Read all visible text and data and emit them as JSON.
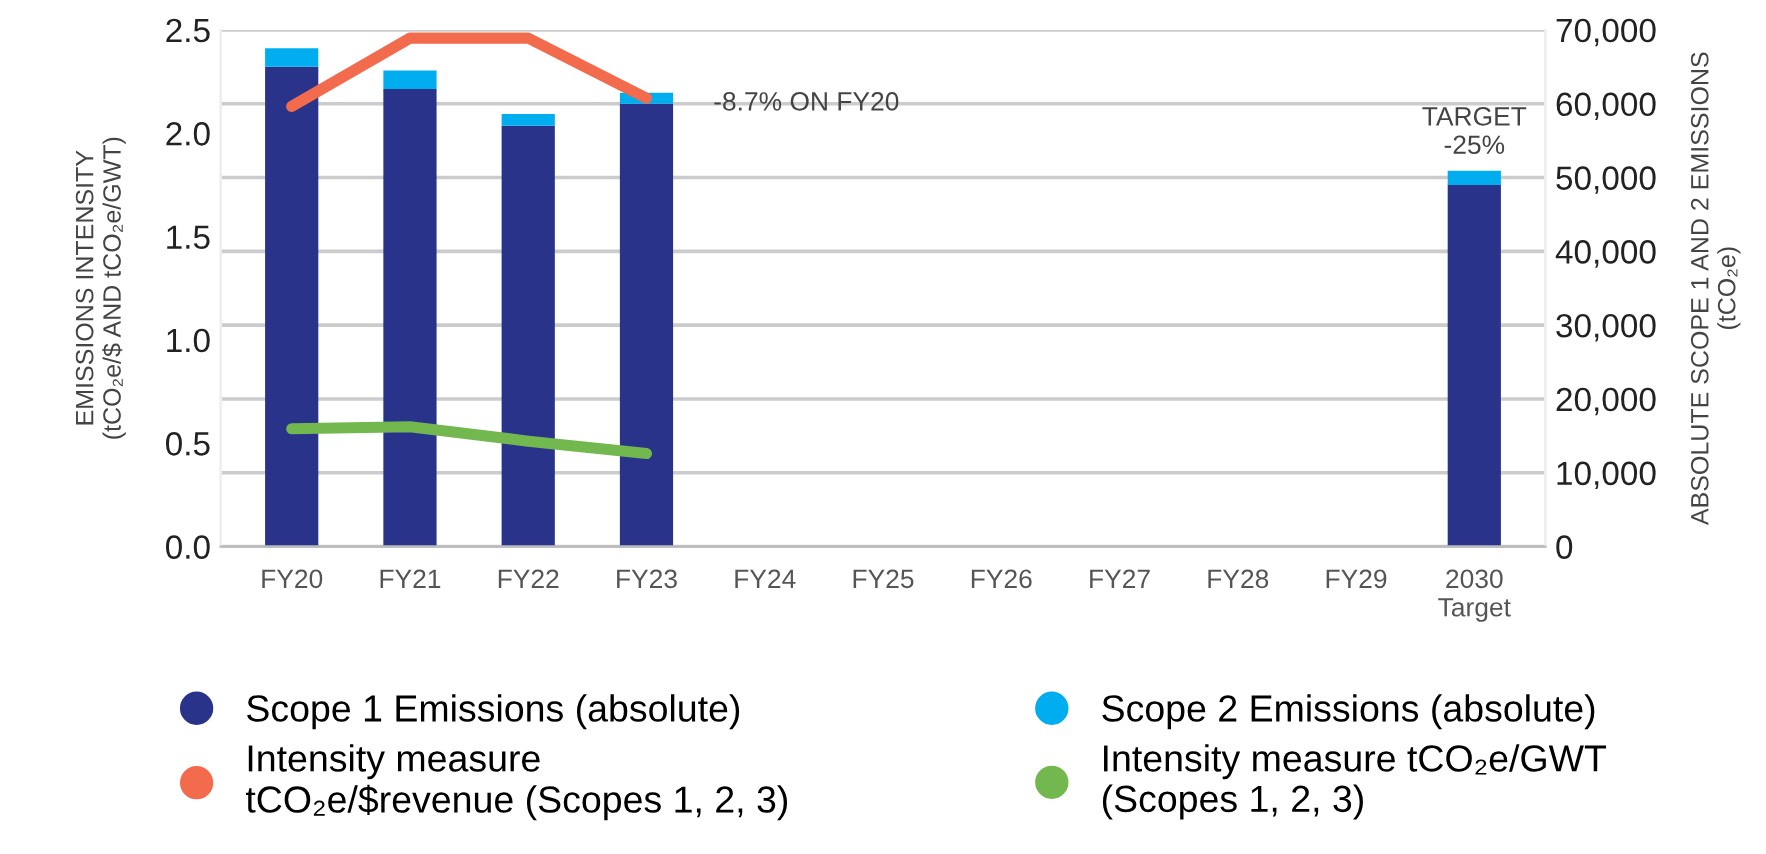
{
  "chart_data": {
    "type": "bar",
    "stacked": true,
    "categories": [
      "FY20",
      "FY21",
      "FY22",
      "FY23",
      "FY24",
      "FY25",
      "FY26",
      "FY27",
      "FY28",
      "FY29",
      "2030\nTarget"
    ],
    "ylabel": "EMISSIONS INTENSITY\n(tCO₂e/$ AND tCO₂e/GWT)",
    "y2label": "ABSOLUTE SCOPE 1 AND 2 EMISSIONS\n(tCO₂e)",
    "ylim": [
      0,
      2.5
    ],
    "yticks": [
      {
        "value": 0,
        "label": "0.0"
      },
      0.5,
      {
        "value": 1,
        "label": "1.0"
      },
      1.5,
      {
        "value": 2,
        "label": "2.0"
      },
      2.5
    ],
    "y2lim": [
      0,
      70000
    ],
    "y2ticks": [
      {
        "value": 0,
        "label": "0"
      },
      {
        "value": 10000,
        "label": "10,000"
      },
      {
        "value": 20000,
        "label": "20,000"
      },
      {
        "value": 30000,
        "label": "30,000"
      },
      {
        "value": 40000,
        "label": "40,000"
      },
      {
        "value": 50000,
        "label": "50,000"
      },
      {
        "value": 60000,
        "label": "60,000"
      },
      {
        "value": 70000,
        "label": "70,000"
      }
    ],
    "grid": "y",
    "legend": "bottom",
    "marker": "none",
    "line_style": "solid",
    "series": [
      {
        "name": "Scope 1 Emissions (absolute)",
        "axis": "y2",
        "color": "#283389",
        "values": [
          65000,
          62000,
          57000,
          60000,
          null,
          null,
          null,
          null,
          null,
          null,
          49000
        ]
      },
      {
        "name": "Scope 2 Emissions (absolute)",
        "axis": "y2",
        "color": "#00aeef",
        "values": [
          2500,
          2500,
          1600,
          1500,
          null,
          null,
          null,
          null,
          null,
          null,
          1900
        ]
      },
      {
        "name": "Intensity measure\ntCO₂e/$revenue (Scopes 1, 2, 3)",
        "type": "line",
        "color": "#f26b4c",
        "values": [
          2.13,
          2.46,
          2.46,
          2.17,
          null,
          null,
          null,
          null,
          null,
          null,
          null
        ]
      },
      {
        "name": "Intensity measure tCO₂e/GWT\n(Scopes 1, 2, 3)",
        "type": "line",
        "color": "#72b84f",
        "values": [
          0.57,
          0.58,
          0.51,
          0.45,
          null,
          null,
          null,
          null,
          null,
          null,
          null
        ]
      }
    ],
    "annotations": [
      {
        "text": "-8.7% ON FY20",
        "x": "FY23",
        "y": 2.17
      },
      {
        "text": "TARGET\n-25%",
        "x": "2030\nTarget",
        "y": 1.82
      }
    ]
  }
}
